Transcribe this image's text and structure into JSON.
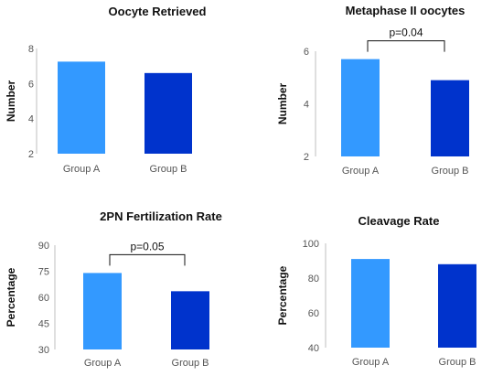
{
  "colors": {
    "group_a": "#3399ff",
    "group_b": "#0033cc"
  },
  "chart_data": [
    {
      "type": "bar",
      "title": "Oocyte Retrieved",
      "ylabel": "Number",
      "categories": [
        "Group A",
        "Group B"
      ],
      "values": [
        7.25,
        6.6
      ],
      "ylim": [
        2,
        8
      ],
      "yticks": [
        2,
        4,
        6,
        8
      ],
      "significance": null
    },
    {
      "type": "bar",
      "title": "Metaphase II oocytes",
      "ylabel": "Number",
      "categories": [
        "Group A",
        "Group B"
      ],
      "values": [
        5.7,
        4.9
      ],
      "ylim": [
        2,
        6
      ],
      "yticks": [
        2,
        4,
        6
      ],
      "significance": "p=0.04"
    },
    {
      "type": "bar",
      "title": "2PN Fertilization Rate",
      "ylabel": "Percentage",
      "categories": [
        "Group A",
        "Group B"
      ],
      "values": [
        74,
        63.5
      ],
      "ylim": [
        30,
        90
      ],
      "yticks": [
        30,
        45,
        60,
        75,
        90
      ],
      "significance": "p=0.05"
    },
    {
      "type": "bar",
      "title": "Cleavage Rate",
      "ylabel": "Percentage",
      "categories": [
        "Group A",
        "Group B"
      ],
      "values": [
        91,
        88
      ],
      "ylim": [
        40,
        100
      ],
      "yticks": [
        40,
        60,
        80,
        100
      ],
      "significance": null
    }
  ]
}
